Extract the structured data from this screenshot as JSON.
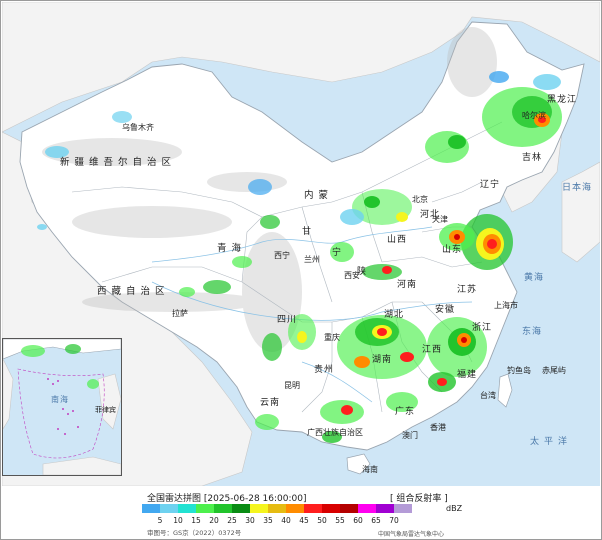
{
  "map": {
    "labels": {
      "urumqi": "乌鲁木齐",
      "xinjiang": "新疆维吾尔自治区",
      "xizang": "西藏自治区",
      "lhasa": "拉萨",
      "qinghai": "青海",
      "xining": "西宁",
      "gansu": "甘",
      "lanzhou": "兰州",
      "neimeng": "内蒙",
      "ningxia": "宁",
      "shaanxi": "陕",
      "xian": "西安",
      "shanxi": "山西",
      "hebei": "河北",
      "beijing": "北京",
      "tianjin": "天津",
      "shandong": "山东",
      "henan": "河南",
      "jiangsu": "江苏",
      "shanghai": "上海市",
      "anhui": "安徽",
      "hubei": "湖北",
      "sichuan": "四川",
      "chongqing": "重庆",
      "guizhou": "贵州",
      "yunnan": "云南",
      "kunming": "昆明",
      "hunan": "湖南",
      "jiangxi": "江西",
      "zhejiang": "浙江",
      "fujian": "福建",
      "taiwan": "台湾",
      "guangdong": "广东",
      "guangxi": "广西壮族自治区",
      "hainan": "海南",
      "hk": "香港",
      "macau": "澳门",
      "liaoning": "辽宁",
      "jilin": "吉林",
      "heilongjiang": "黑龙江",
      "harbin": "哈尔滨",
      "japan_sea": "日本海",
      "yellow_sea": "黄海",
      "east_sea": "东海",
      "pacific": "太平洋",
      "diaoyu": "钓鱼岛",
      "chiwei": "赤尾屿",
      "inset_sea": "南海",
      "inset_sea2": "菲律宾"
    }
  },
  "legend": {
    "title": "全国雷达拼图 [2025-06-28 16:00:00]",
    "type": "[ 组合反射率 ]",
    "unit": "dBZ",
    "ticks": [
      "5",
      "10",
      "15",
      "20",
      "25",
      "30",
      "35",
      "40",
      "45",
      "50",
      "55",
      "60",
      "65",
      "70"
    ],
    "colors": [
      "#42a8f0",
      "#6ed2f0",
      "#22e2d2",
      "#4df04d",
      "#22c42c",
      "#0a8c14",
      "#f5f51e",
      "#e6bc12",
      "#ff8c00",
      "#ff1e1e",
      "#d80000",
      "#b40000",
      "#ff00f0",
      "#a000d2",
      "#b49bd7"
    ],
    "approval": "审图号：GS京（2022）0372号",
    "source": "中国气象局雷达气象中心"
  }
}
